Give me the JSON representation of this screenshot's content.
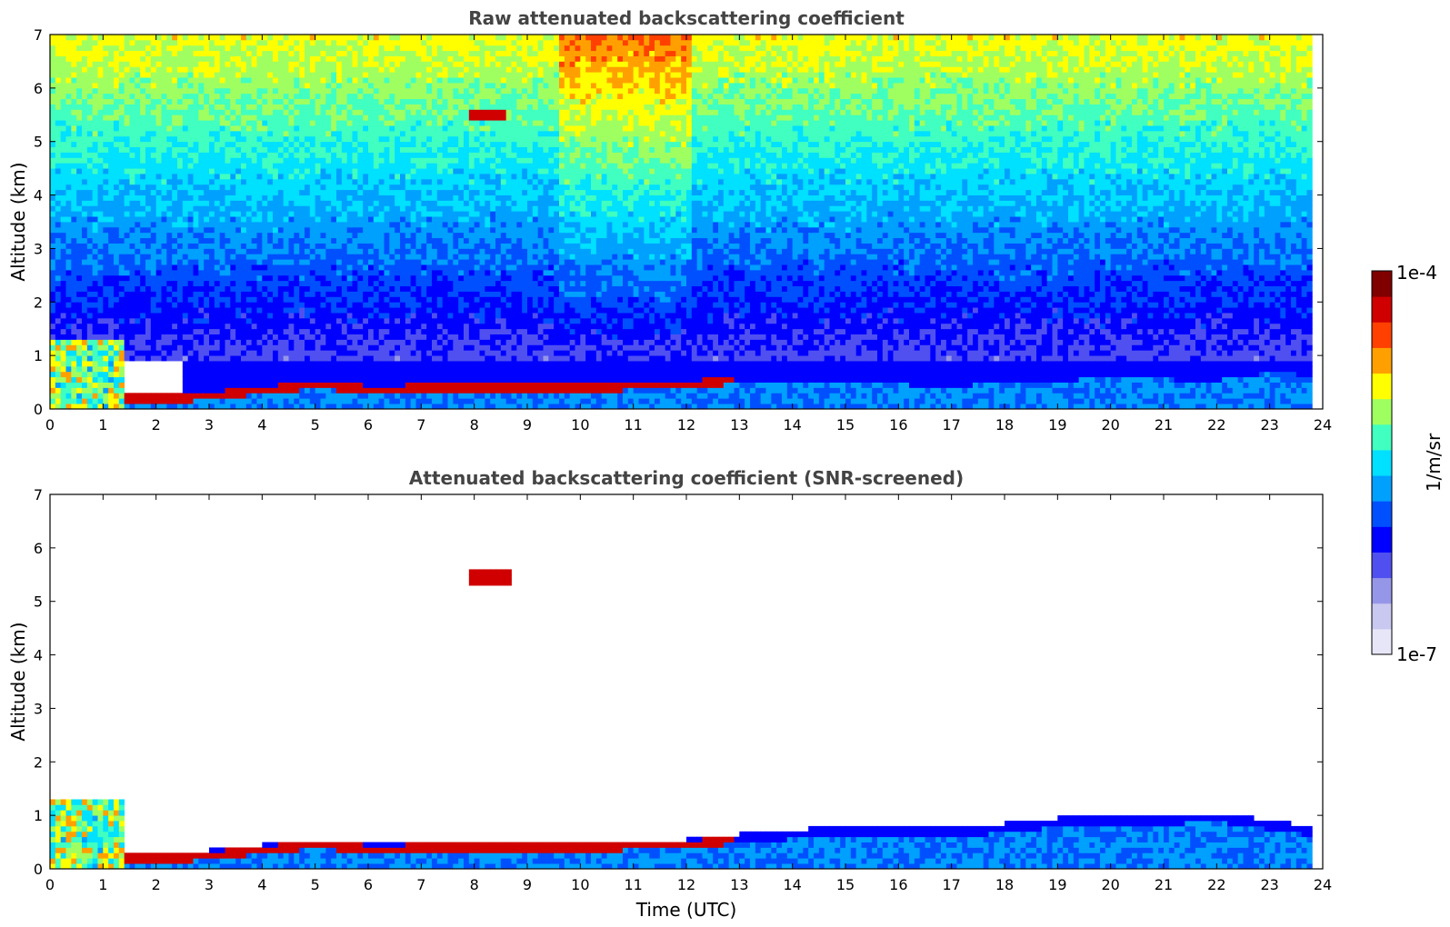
{
  "chart_data": [
    {
      "type": "heatmap",
      "title": "Raw attenuated backscattering coefficient",
      "xlabel": "",
      "ylabel": "Altitude (km)",
      "xlim": [
        0,
        24
      ],
      "ylim": [
        0,
        7
      ],
      "xticks": [
        "0",
        "1",
        "2",
        "3",
        "4",
        "5",
        "6",
        "7",
        "8",
        "9",
        "10",
        "11",
        "12",
        "13",
        "14",
        "15",
        "16",
        "17",
        "18",
        "19",
        "20",
        "21",
        "22",
        "23",
        "24"
      ],
      "yticks": [
        "0",
        "1",
        "2",
        "3",
        "4",
        "5",
        "6",
        "7"
      ],
      "data_end_time": 23.8,
      "features": {
        "boundary_layer_top_km": [
          [
            0.0,
            0.3
          ],
          [
            1.5,
            0.25
          ],
          [
            2.5,
            0.25
          ],
          [
            3.5,
            0.35
          ],
          [
            5.0,
            0.5
          ],
          [
            6.0,
            0.42
          ],
          [
            8.0,
            0.45
          ],
          [
            10.0,
            0.45
          ],
          [
            12.0,
            0.5
          ],
          [
            13.0,
            0.6
          ],
          [
            15.0,
            0.6
          ],
          [
            17.0,
            0.55
          ],
          [
            20.0,
            0.7
          ],
          [
            22.0,
            0.65
          ],
          [
            23.0,
            0.8
          ],
          [
            23.8,
            0.75
          ]
        ],
        "aerosol_layer_early_top_km": 1.3,
        "elevated_cloud": {
          "time_start": 7.8,
          "time_end": 8.5,
          "altitude_km": [
            5.35,
            5.55
          ]
        },
        "noisy_upper_region_time": [
          9.5,
          12.0
        ]
      }
    },
    {
      "type": "heatmap",
      "title": "Attenuated backscattering coefficient (SNR-screened)",
      "xlabel": "Time (UTC)",
      "ylabel": "Altitude (km)",
      "xlim": [
        0,
        24
      ],
      "ylim": [
        0,
        7
      ],
      "xticks": [
        "0",
        "1",
        "2",
        "3",
        "4",
        "5",
        "6",
        "7",
        "8",
        "9",
        "10",
        "11",
        "12",
        "13",
        "14",
        "15",
        "16",
        "17",
        "18",
        "19",
        "20",
        "21",
        "22",
        "23",
        "24"
      ],
      "yticks": [
        "0",
        "1",
        "2",
        "3",
        "4",
        "5",
        "6",
        "7"
      ],
      "data_end_time": 23.8,
      "features": {
        "boundary_layer_top_km": [
          [
            0.0,
            0.3
          ],
          [
            1.5,
            0.25
          ],
          [
            2.5,
            0.25
          ],
          [
            3.5,
            0.35
          ],
          [
            5.0,
            0.5
          ],
          [
            6.0,
            0.42
          ],
          [
            8.0,
            0.45
          ],
          [
            10.0,
            0.45
          ],
          [
            12.0,
            0.5
          ],
          [
            13.0,
            0.6
          ],
          [
            15.0,
            0.75
          ],
          [
            17.0,
            0.7
          ],
          [
            19.0,
            0.9
          ],
          [
            21.0,
            0.95
          ],
          [
            22.0,
            1.0
          ],
          [
            23.0,
            0.85
          ],
          [
            23.8,
            0.75
          ]
        ],
        "aerosol_layer_early_top_km": 1.3,
        "elevated_cloud": {
          "time_start": 7.8,
          "time_end": 8.6,
          "altitude_km": [
            5.3,
            5.6
          ]
        }
      }
    }
  ],
  "colorbar": {
    "max_label": "1e-4",
    "min_label": "1e-7",
    "unit_label": "1/m/sr",
    "scale": "log",
    "colormap": "jet",
    "colors": [
      "#e6e6f8",
      "#c8c8f0",
      "#9696e8",
      "#5050f0",
      "#0000ff",
      "#0050ff",
      "#00a0ff",
      "#00e0ff",
      "#40ffc0",
      "#a0ff60",
      "#ffff00",
      "#ffa000",
      "#ff4000",
      "#d00000",
      "#800000"
    ]
  }
}
